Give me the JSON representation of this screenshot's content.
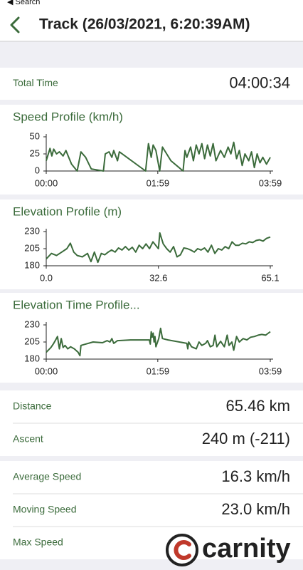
{
  "status": {
    "back": "◀ Search"
  },
  "header": {
    "title": "Track (26/03/2021, 6:20:39AM)"
  },
  "summary": [
    {
      "label": "Total Time",
      "value": "04:00:34"
    }
  ],
  "stats": [
    [
      {
        "label": "Distance",
        "value": "65.46 km"
      },
      {
        "label": "Ascent",
        "value": "240 m (-211)"
      }
    ],
    [
      {
        "label": "Average Speed",
        "value": "16.3 km/h"
      },
      {
        "label": "Moving Speed",
        "value": "23.0 km/h"
      },
      {
        "label": "Max Speed"
      }
    ]
  ],
  "watermark": "carnity",
  "chart_data": [
    {
      "type": "line",
      "title": "Speed Profile (km/h)",
      "color": "#3b6b3b",
      "x": [
        0,
        4,
        6,
        8,
        11,
        14,
        18,
        21,
        24,
        27,
        33,
        37,
        42,
        48,
        61,
        63,
        67,
        70,
        72,
        76,
        78,
        106,
        109,
        112,
        114,
        117,
        121,
        124,
        133,
        146,
        148,
        150,
        154,
        157,
        160,
        163,
        166,
        169,
        172,
        175,
        178,
        181,
        186,
        190,
        194,
        197,
        200,
        203,
        206,
        209,
        212,
        216,
        219,
        222,
        225,
        228,
        231,
        235,
        239
      ],
      "values": [
        15,
        33,
        22,
        32,
        25,
        28,
        22,
        30,
        20,
        10,
        0,
        28,
        20,
        3,
        0,
        25,
        28,
        20,
        30,
        15,
        28,
        0,
        40,
        20,
        38,
        30,
        0,
        35,
        15,
        0,
        30,
        20,
        35,
        15,
        38,
        25,
        40,
        18,
        38,
        22,
        40,
        15,
        30,
        20,
        35,
        25,
        42,
        18,
        30,
        8,
        25,
        15,
        28,
        5,
        25,
        12,
        20,
        10,
        20
      ],
      "xlim": [
        0,
        239
      ],
      "ylim": [
        0,
        50
      ],
      "xticks": [
        {
          "value": 0,
          "label": "00:00"
        },
        {
          "value": 119,
          "label": "01:59"
        },
        {
          "value": 239,
          "label": "03:59"
        }
      ],
      "yticks": [
        0,
        25,
        50
      ]
    },
    {
      "type": "line",
      "title": "Elevation Profile (m)",
      "color": "#3b6b3b",
      "x": [
        0,
        1.5,
        3,
        4.5,
        6,
        7,
        8,
        9,
        10.5,
        12,
        13,
        14,
        15,
        16,
        17,
        18,
        19,
        20,
        21,
        22,
        23,
        24,
        25,
        26,
        27,
        28,
        29,
        30,
        31,
        32.6,
        33,
        34,
        35,
        36,
        37,
        38,
        39,
        40,
        41,
        42,
        43,
        44,
        45,
        46,
        47,
        48,
        49,
        50,
        51,
        52,
        53,
        54,
        55,
        56,
        57,
        58,
        59,
        60,
        61,
        62,
        63,
        64,
        65.1
      ],
      "values": [
        190,
        198,
        195,
        200,
        205,
        213,
        200,
        195,
        193,
        198,
        186,
        200,
        185,
        198,
        196,
        200,
        203,
        200,
        206,
        203,
        208,
        203,
        207,
        200,
        210,
        205,
        212,
        205,
        215,
        205,
        228,
        212,
        205,
        200,
        208,
        193,
        196,
        206,
        205,
        203,
        200,
        205,
        203,
        206,
        200,
        210,
        198,
        205,
        203,
        208,
        205,
        215,
        210,
        210,
        213,
        212,
        215,
        214,
        217,
        218,
        216,
        220,
        222
      ],
      "xlim": [
        0,
        65.1
      ],
      "ylim": [
        180,
        230
      ],
      "xticks": [
        {
          "value": 0,
          "label": "0.0"
        },
        32.6,
        65.1
      ],
      "yticks": [
        180,
        205,
        230
      ]
    },
    {
      "type": "line",
      "title": "Elevation Time Profile...",
      "color": "#3b6b3b",
      "x": [
        0,
        5,
        8,
        10,
        12,
        14,
        16,
        18,
        20,
        23,
        26,
        30,
        34,
        36,
        37,
        42,
        50,
        60,
        65,
        68,
        70,
        72,
        76,
        90,
        110,
        111,
        112,
        113,
        114,
        115,
        116,
        117,
        120,
        122,
        124,
        130,
        150,
        151,
        152,
        155,
        160,
        163,
        166,
        170,
        172,
        175,
        178,
        180,
        182,
        186,
        190,
        193,
        195,
        198,
        200,
        203,
        206,
        210,
        214,
        218,
        222,
        226,
        230,
        234,
        237,
        239
      ],
      "values": [
        190,
        197,
        203,
        208,
        213,
        195,
        210,
        197,
        200,
        195,
        198,
        195,
        190,
        185,
        200,
        202,
        205,
        204,
        207,
        205,
        210,
        203,
        207,
        208,
        208,
        202,
        220,
        212,
        218,
        205,
        213,
        198,
        210,
        225,
        210,
        208,
        203,
        195,
        205,
        198,
        195,
        205,
        200,
        203,
        207,
        198,
        200,
        215,
        198,
        206,
        198,
        215,
        200,
        205,
        193,
        213,
        205,
        210,
        208,
        212,
        213,
        215,
        216,
        215,
        218,
        220
      ],
      "xlim": [
        0,
        239
      ],
      "ylim": [
        180,
        230
      ],
      "xticks": [
        {
          "value": 0,
          "label": "00:00"
        },
        {
          "value": 119,
          "label": "01:59"
        },
        {
          "value": 239,
          "label": "03:59"
        }
      ],
      "yticks": [
        180,
        205,
        230
      ]
    }
  ]
}
